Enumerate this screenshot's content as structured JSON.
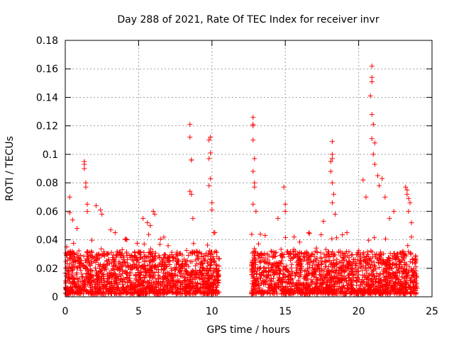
{
  "chart_data": {
    "type": "scatter",
    "title": "Day 288 of 2021, Rate Of TEC Index for receiver invr",
    "xlabel": "GPS time / hours",
    "ylabel": "ROTI / TECUs",
    "xlim": [
      0,
      25
    ],
    "ylim": [
      0,
      0.18
    ],
    "xticks": [
      0,
      5,
      10,
      15,
      20,
      25
    ],
    "yticks": [
      0,
      0.02,
      0.04,
      0.06,
      0.08,
      0.1,
      0.12,
      0.14,
      0.16,
      0.18
    ],
    "xtick_labels": [
      "0",
      "5",
      "10",
      "15",
      "20",
      "25"
    ],
    "ytick_labels": [
      "0",
      "0.02",
      "0.04",
      "0.06",
      "0.08",
      "0.1",
      "0.12",
      "0.14",
      "0.16",
      "0.18"
    ],
    "grid": true,
    "marker": "+",
    "marker_color": "#ff0000",
    "data_gap_hours": [
      10.5,
      12.7
    ],
    "series": [
      {
        "name": "ROTI",
        "points": [
          [
            0.1,
            0.035
          ],
          [
            0.3,
            0.07
          ],
          [
            0.3,
            0.059
          ],
          [
            0.5,
            0.054
          ],
          [
            0.8,
            0.048
          ],
          [
            1.3,
            0.095
          ],
          [
            1.3,
            0.093
          ],
          [
            1.3,
            0.09
          ],
          [
            1.4,
            0.08
          ],
          [
            1.4,
            0.077
          ],
          [
            1.5,
            0.065
          ],
          [
            1.5,
            0.06
          ],
          [
            2.1,
            0.064
          ],
          [
            2.4,
            0.061
          ],
          [
            2.5,
            0.058
          ],
          [
            3.1,
            0.047
          ],
          [
            3.4,
            0.045
          ],
          [
            4.2,
            0.04
          ],
          [
            5.3,
            0.055
          ],
          [
            5.6,
            0.052
          ],
          [
            5.8,
            0.05
          ],
          [
            6.0,
            0.06
          ],
          [
            6.1,
            0.058
          ],
          [
            8.5,
            0.121
          ],
          [
            8.5,
            0.112
          ],
          [
            8.6,
            0.096
          ],
          [
            8.6,
            0.096
          ],
          [
            8.5,
            0.074
          ],
          [
            8.6,
            0.072
          ],
          [
            8.7,
            0.055
          ],
          [
            9.8,
            0.11
          ],
          [
            9.9,
            0.112
          ],
          [
            9.9,
            0.101
          ],
          [
            9.8,
            0.097
          ],
          [
            9.9,
            0.083
          ],
          [
            9.8,
            0.078
          ],
          [
            10.0,
            0.066
          ],
          [
            10.0,
            0.061
          ],
          [
            10.2,
            0.045
          ],
          [
            12.8,
            0.126
          ],
          [
            12.8,
            0.121
          ],
          [
            12.8,
            0.12
          ],
          [
            12.8,
            0.11
          ],
          [
            12.9,
            0.097
          ],
          [
            12.8,
            0.088
          ],
          [
            12.9,
            0.08
          ],
          [
            12.9,
            0.077
          ],
          [
            12.8,
            0.065
          ],
          [
            13.0,
            0.06
          ],
          [
            13.3,
            0.044
          ],
          [
            14.5,
            0.055
          ],
          [
            14.9,
            0.077
          ],
          [
            15.0,
            0.065
          ],
          [
            15.0,
            0.06
          ],
          [
            15.6,
            0.042
          ],
          [
            16.6,
            0.045
          ],
          [
            17.6,
            0.053
          ],
          [
            18.2,
            0.109
          ],
          [
            18.2,
            0.1
          ],
          [
            18.2,
            0.097
          ],
          [
            18.1,
            0.095
          ],
          [
            18.1,
            0.088
          ],
          [
            18.2,
            0.08
          ],
          [
            18.3,
            0.072
          ],
          [
            18.2,
            0.066
          ],
          [
            18.4,
            0.058
          ],
          [
            19.2,
            0.045
          ],
          [
            20.3,
            0.082
          ],
          [
            20.5,
            0.07
          ],
          [
            20.9,
            0.162
          ],
          [
            20.9,
            0.154
          ],
          [
            20.9,
            0.151
          ],
          [
            20.8,
            0.141
          ],
          [
            20.9,
            0.128
          ],
          [
            21.0,
            0.121
          ],
          [
            20.9,
            0.111
          ],
          [
            21.0,
            0.1
          ],
          [
            21.1,
            0.108
          ],
          [
            21.1,
            0.093
          ],
          [
            21.3,
            0.085
          ],
          [
            21.4,
            0.078
          ],
          [
            21.6,
            0.083
          ],
          [
            21.8,
            0.07
          ],
          [
            22.1,
            0.055
          ],
          [
            22.4,
            0.06
          ],
          [
            23.2,
            0.077
          ],
          [
            23.3,
            0.075
          ],
          [
            23.3,
            0.072
          ],
          [
            23.4,
            0.069
          ],
          [
            23.5,
            0.066
          ],
          [
            23.4,
            0.06
          ],
          [
            23.6,
            0.052
          ],
          [
            23.6,
            0.042
          ],
          [
            23.9,
            0.025
          ]
        ],
        "noise_band": {
          "x_ranges": [
            [
              0,
              10.5
            ],
            [
              12.7,
              24
            ]
          ],
          "y_floor": 0.002,
          "y_typical_max": 0.03
        }
      }
    ]
  }
}
